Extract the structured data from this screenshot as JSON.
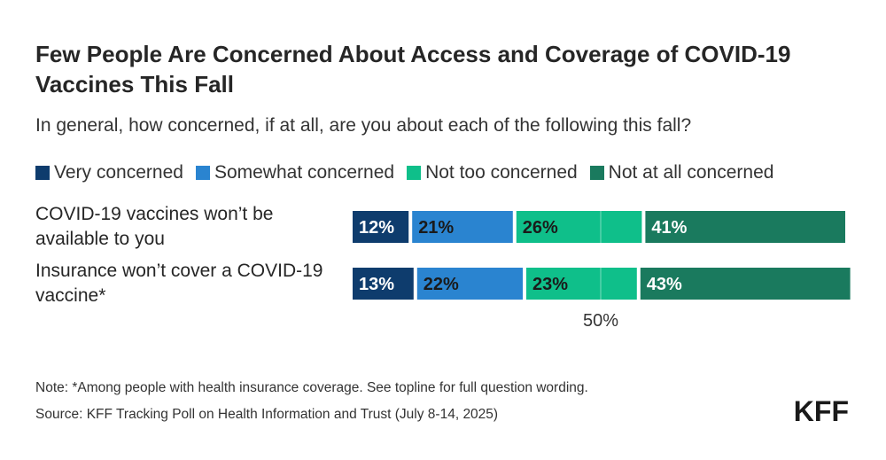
{
  "header": {
    "title": "Few People Are Concerned About Access and Coverage of COVID-19 Vaccines This Fall",
    "subtitle": "In general, how concerned, if at all, are you about each of the following this fall?"
  },
  "legend": [
    {
      "label": "Very concerned",
      "color": "#0e3c6d"
    },
    {
      "label": "Somewhat concerned",
      "color": "#2a84d0"
    },
    {
      "label": "Not too concerned",
      "color": "#0fbf8a"
    },
    {
      "label": "Not at all concerned",
      "color": "#1a7a5e"
    }
  ],
  "chart_data": {
    "type": "bar",
    "orientation": "horizontal",
    "stacked": true,
    "title": "Few People Are Concerned About Access and Coverage of COVID-19 Vaccines This Fall",
    "subtitle": "In general, how concerned, if at all, are you about each of the following this fall?",
    "categories": [
      "COVID-19 vaccines won’t be available to you",
      "Insurance won’t cover a COVID-19 vaccine*"
    ],
    "series": [
      {
        "name": "Very concerned",
        "values": [
          12,
          13
        ],
        "labels": [
          "12%",
          "13%"
        ],
        "color": "#0e3c6d",
        "label_color": "#ffffff"
      },
      {
        "name": "Somewhat concerned",
        "values": [
          21,
          22
        ],
        "labels": [
          "21%",
          "22%"
        ],
        "color": "#2a84d0",
        "label_color": "#1a1a1a"
      },
      {
        "name": "Not too concerned",
        "values": [
          26,
          23
        ],
        "labels": [
          "26%",
          "23%"
        ],
        "color": "#0fbf8a",
        "label_color": "#1a1a1a"
      },
      {
        "name": "Not at all concerned",
        "values": [
          41,
          43
        ],
        "labels": [
          "41%",
          "43%"
        ],
        "color": "#1a7a5e",
        "label_color": "#ffffff"
      }
    ],
    "reference_line": {
      "value": 50,
      "label": "50%"
    },
    "xlim": [
      0,
      100
    ],
    "grid": false,
    "legend": "top"
  },
  "footer": {
    "note": "Note: *Among people with health insurance coverage. See topline for full question wording.",
    "source": "Source: KFF Tracking Poll on Health Information and Trust (July 8-14, 2025)",
    "logo": "KFF"
  }
}
